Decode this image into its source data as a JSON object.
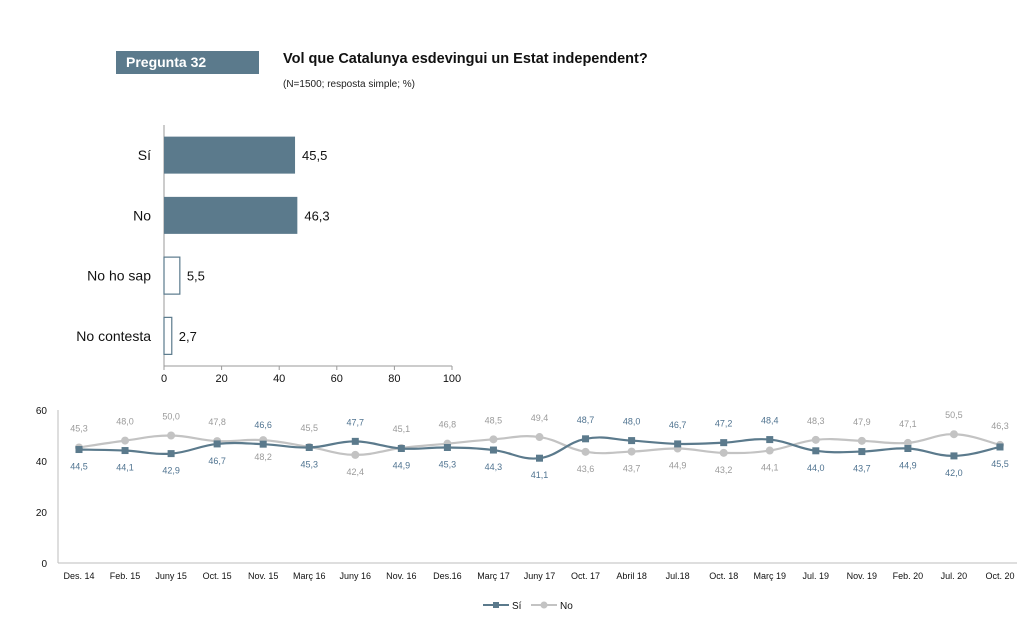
{
  "header": {
    "badge": "Pregunta 32",
    "title": "Vol que Catalunya esdevingui un Estat independent?",
    "subtitle": "(N=1500; resposta simple; %)"
  },
  "colors": {
    "si": "#5b7a8c",
    "no": "#c3c3c3",
    "badge": "#5b7a8c"
  },
  "chart_data": [
    {
      "type": "bar",
      "orientation": "horizontal",
      "categories": [
        "Sí",
        "No",
        "No ho sap",
        "No contesta"
      ],
      "values": [
        45.5,
        46.3,
        5.5,
        2.7
      ],
      "value_labels": [
        "45,5",
        "46,3",
        "5,5",
        "2,7"
      ],
      "xlim": [
        0,
        100
      ],
      "xticks": [
        "0",
        "20",
        "40",
        "60",
        "80",
        "100"
      ],
      "bar_styles": [
        "filled",
        "filled",
        "outline",
        "outline"
      ],
      "title": "",
      "xlabel": "",
      "ylabel": ""
    },
    {
      "type": "line",
      "categories": [
        "Des. 14",
        "Feb. 15",
        "Juny 15",
        "Oct. 15",
        "Nov. 15",
        "Març 16",
        "Juny 16",
        "Nov. 16",
        "Des.16",
        "Març 17",
        "Juny 17",
        "Oct. 17",
        "Abril 18",
        "Jul.18",
        "Oct. 18",
        "Març 19",
        "Jul. 19",
        "Nov. 19",
        "Feb. 20",
        "Jul. 20",
        "Oct. 20"
      ],
      "ylim": [
        0,
        60
      ],
      "yticks": [
        "0",
        "20",
        "40",
        "60"
      ],
      "legend_position": "bottom",
      "series": [
        {
          "name": "Sí",
          "marker": "square",
          "values": [
            44.5,
            44.1,
            42.9,
            46.7,
            46.6,
            45.3,
            47.7,
            44.9,
            45.3,
            44.3,
            41.1,
            48.7,
            48.0,
            46.7,
            47.2,
            48.4,
            44.0,
            43.7,
            44.9,
            42.0,
            45.5
          ],
          "labels": [
            "44,5",
            "44,1",
            "42,9",
            "46,7",
            "46,6",
            "45,3",
            "47,7",
            "44,9",
            "45,3",
            "44,3",
            "41,1",
            "48,7",
            "48,0",
            "46,7",
            "47,2",
            "48,4",
            "44,0",
            "43,7",
            "44,9",
            "42,0",
            "45,5"
          ]
        },
        {
          "name": "No",
          "marker": "circle",
          "values": [
            45.3,
            48.0,
            50.0,
            47.8,
            48.2,
            45.5,
            42.4,
            45.1,
            46.8,
            48.5,
            49.4,
            43.6,
            43.7,
            44.9,
            43.2,
            44.1,
            48.3,
            47.9,
            47.1,
            50.5,
            46.3
          ],
          "labels": [
            "45,3",
            "48,0",
            "50,0",
            "47,8",
            "48,2",
            "45,5",
            "42,4",
            "45,1",
            "46,8",
            "48,5",
            "49,4",
            "43,6",
            "43,7",
            "44,9",
            "43,2",
            "44,1",
            "48,3",
            "47,9",
            "47,1",
            "50,5",
            "46,3"
          ]
        }
      ],
      "label_sides": {
        "si": [
          "below",
          "below",
          "below",
          "below",
          "above",
          "below",
          "above",
          "below",
          "below",
          "below",
          "below",
          "above",
          "above",
          "above",
          "above",
          "above",
          "below",
          "below",
          "below",
          "below",
          "below"
        ],
        "no": [
          "above",
          "above",
          "above",
          "above",
          "below",
          "above",
          "below",
          "above",
          "above",
          "above",
          "above",
          "below",
          "below",
          "below",
          "below",
          "below",
          "above",
          "above",
          "above",
          "above",
          "above"
        ]
      },
      "title": "",
      "xlabel": "",
      "ylabel": ""
    }
  ]
}
